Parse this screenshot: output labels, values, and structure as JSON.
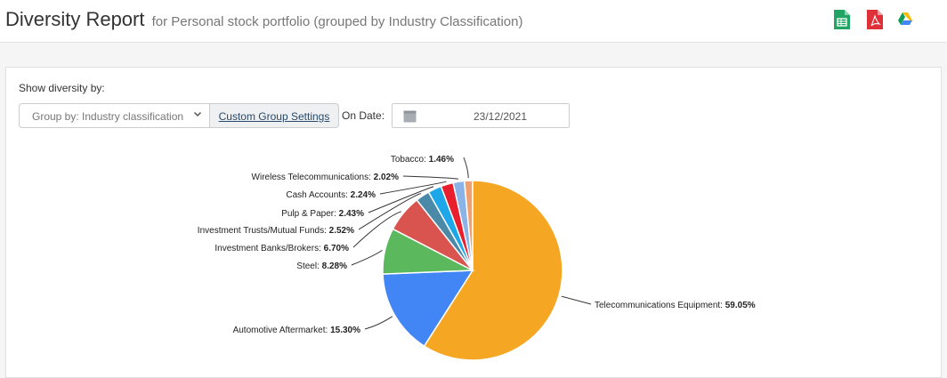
{
  "header": {
    "title": "Diversity Report",
    "subtitle": "for Personal stock portfolio (grouped by Industry Classification)",
    "export_icons": [
      {
        "name": "google-sheets-icon",
        "color": "#21a464"
      },
      {
        "name": "pdf-icon",
        "color": "#e0313b"
      },
      {
        "name": "google-drive-icon",
        "color": "#4285f4"
      }
    ]
  },
  "controls": {
    "show_label": "Show diversity by:",
    "group_select_value": "Group by: Industry classification",
    "custom_group_button": "Custom Group Settings",
    "on_date_label": "On Date:",
    "date_value": "23/12/2021"
  },
  "chart_data": {
    "type": "pie",
    "title": "",
    "start_angle": "12 o'clock, clockwise",
    "slices": [
      {
        "label": "Telecommunications Equipment",
        "value": 59.05,
        "display": "59.05%",
        "color": "#f5a623"
      },
      {
        "label": "Automotive Aftermarket",
        "value": 15.3,
        "display": "15.30%",
        "color": "#4285f4"
      },
      {
        "label": "Steel",
        "value": 8.28,
        "display": "8.28%",
        "color": "#5cb85c"
      },
      {
        "label": "Investment Banks/Brokers",
        "value": 6.7,
        "display": "6.70%",
        "color": "#d9534f"
      },
      {
        "label": "Investment Trusts/Mutual Funds",
        "value": 2.52,
        "display": "2.52%",
        "color": "#4a89a8"
      },
      {
        "label": "Pulp & Paper",
        "value": 2.43,
        "display": "2.43%",
        "color": "#1ea7e8"
      },
      {
        "label": "Cash Accounts",
        "value": 2.24,
        "display": "2.24%",
        "color": "#e8202e"
      },
      {
        "label": "Wireless Telecommunications",
        "value": 2.02,
        "display": "2.02%",
        "color": "#8ab4e8"
      },
      {
        "label": "Tobacco",
        "value": 1.46,
        "display": "1.46%",
        "color": "#f0a070"
      }
    ]
  }
}
